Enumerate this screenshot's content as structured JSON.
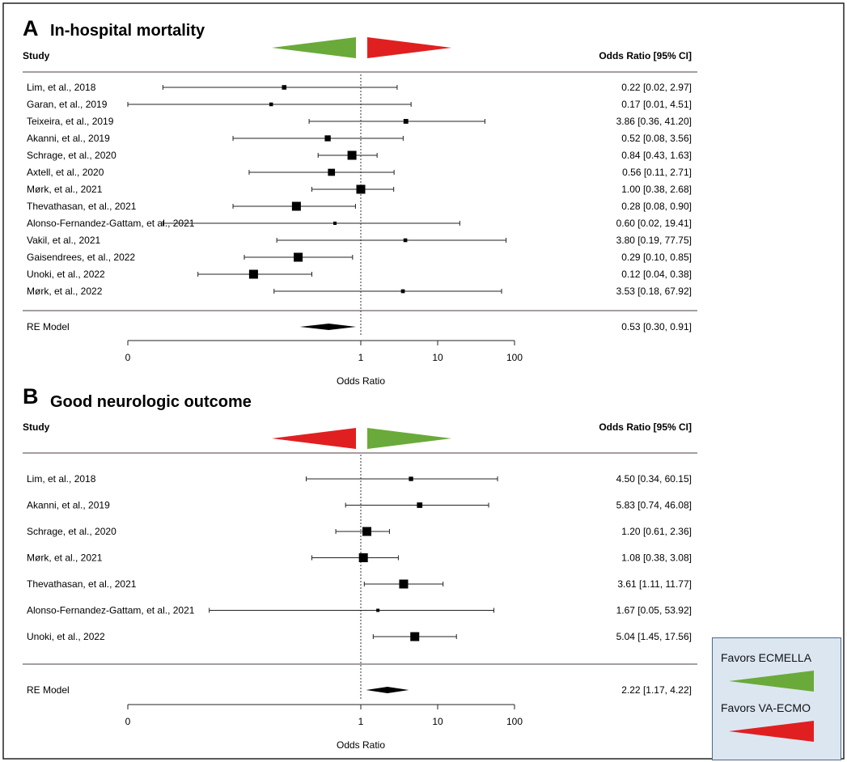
{
  "colors": {
    "favor_ecmella": "#6aaa3a",
    "favor_vaecmo": "#e02020",
    "legend_bg": "#dce6f1"
  },
  "legend": {
    "favors_ecmella": "Favors ECMELLA",
    "favors_vaecmo": "Favors VA-ECMO"
  },
  "chart_data": [
    {
      "type": "forest",
      "panel": "A",
      "title": "In-hospital mortality",
      "study_header": "Study",
      "or_header": "Odds Ratio [95% CI]",
      "xlabel": "Odds Ratio",
      "x_scale": "log",
      "ticks": [
        {
          "label": "0",
          "value": 0.01
        },
        {
          "label": "1",
          "value": 1
        },
        {
          "label": "10",
          "value": 10
        },
        {
          "label": "100",
          "value": 100
        }
      ],
      "left_arrow_color": "#6aaa3a",
      "right_arrow_color": "#e02020",
      "studies": [
        {
          "name": "Lim, et al., 2018",
          "or": 0.22,
          "lo": 0.02,
          "hi": 2.97,
          "ci_text": "0.22 [0.02,  2.97]"
        },
        {
          "name": "Garan, et al., 2019",
          "or": 0.17,
          "lo": 0.01,
          "hi": 4.51,
          "ci_text": "0.17 [0.01,  4.51]"
        },
        {
          "name": "Teixeira, et al., 2019",
          "or": 3.86,
          "lo": 0.36,
          "hi": 41.2,
          "ci_text": "3.86 [0.36, 41.20]"
        },
        {
          "name": "Akanni, et al., 2019",
          "or": 0.52,
          "lo": 0.08,
          "hi": 3.56,
          "ci_text": "0.52 [0.08,  3.56]"
        },
        {
          "name": "Schrage, et al., 2020",
          "or": 0.84,
          "lo": 0.43,
          "hi": 1.63,
          "ci_text": "0.84 [0.43,  1.63]"
        },
        {
          "name": "Axtell, et al., 2020",
          "or": 0.56,
          "lo": 0.11,
          "hi": 2.71,
          "ci_text": "0.56 [0.11,  2.71]"
        },
        {
          "name": "Mørk, et al., 2021",
          "or": 1.0,
          "lo": 0.38,
          "hi": 2.68,
          "ci_text": "1.00 [0.38,  2.68]"
        },
        {
          "name": "Thevathasan, et al., 2021",
          "or": 0.28,
          "lo": 0.08,
          "hi": 0.9,
          "ci_text": "0.28 [0.08,  0.90]"
        },
        {
          "name": "Alonso-Fernandez-Gattam, et al., 2021",
          "or": 0.6,
          "lo": 0.02,
          "hi": 19.41,
          "ci_text": "0.60 [0.02, 19.41]"
        },
        {
          "name": "Vakil, et al., 2021",
          "or": 3.8,
          "lo": 0.19,
          "hi": 77.75,
          "ci_text": "3.80 [0.19, 77.75]"
        },
        {
          "name": "Gaisendrees, et al., 2022",
          "or": 0.29,
          "lo": 0.1,
          "hi": 0.85,
          "ci_text": "0.29 [0.10,  0.85]"
        },
        {
          "name": "Unoki, et al., 2022",
          "or": 0.12,
          "lo": 0.04,
          "hi": 0.38,
          "ci_text": "0.12 [0.04,  0.38]"
        },
        {
          "name": "Mørk, et al., 2022",
          "or": 3.53,
          "lo": 0.18,
          "hi": 67.92,
          "ci_text": "3.53 [0.18, 67.92]"
        }
      ],
      "summary": {
        "name": "RE Model",
        "or": 0.53,
        "lo": 0.3,
        "hi": 0.91,
        "ci_text": "0.53 [0.30,  0.91]"
      }
    },
    {
      "type": "forest",
      "panel": "B",
      "title": "Good neurologic outcome",
      "study_header": "Study",
      "or_header": "Odds Ratio [95% CI]",
      "xlabel": "Odds Ratio",
      "x_scale": "log",
      "ticks": [
        {
          "label": "0",
          "value": 0.01
        },
        {
          "label": "1",
          "value": 1
        },
        {
          "label": "10",
          "value": 10
        },
        {
          "label": "100",
          "value": 100
        }
      ],
      "left_arrow_color": "#e02020",
      "right_arrow_color": "#6aaa3a",
      "studies": [
        {
          "name": "Lim, et al., 2018",
          "or": 4.5,
          "lo": 0.34,
          "hi": 60.15,
          "ci_text": "4.50 [0.34, 60.15]"
        },
        {
          "name": "Akanni, et al., 2019",
          "or": 5.83,
          "lo": 0.74,
          "hi": 46.08,
          "ci_text": "5.83 [0.74, 46.08]"
        },
        {
          "name": "Schrage, et al., 2020",
          "or": 1.2,
          "lo": 0.61,
          "hi": 2.36,
          "ci_text": "1.20 [0.61,  2.36]"
        },
        {
          "name": "Mørk, et al., 2021",
          "or": 1.08,
          "lo": 0.38,
          "hi": 3.08,
          "ci_text": "1.08 [0.38,  3.08]"
        },
        {
          "name": "Thevathasan, et al., 2021",
          "or": 3.61,
          "lo": 1.11,
          "hi": 11.77,
          "ci_text": "3.61 [1.11, 11.77]"
        },
        {
          "name": "Alonso-Fernandez-Gattam, et al., 2021",
          "or": 1.67,
          "lo": 0.05,
          "hi": 53.92,
          "ci_text": "1.67 [0.05, 53.92]"
        },
        {
          "name": "Unoki, et al., 2022",
          "or": 5.04,
          "lo": 1.45,
          "hi": 17.56,
          "ci_text": "5.04 [1.45, 17.56]"
        }
      ],
      "summary": {
        "name": "RE Model",
        "or": 2.22,
        "lo": 1.17,
        "hi": 4.22,
        "ci_text": "2.22 [1.17,  4.22]"
      }
    }
  ]
}
